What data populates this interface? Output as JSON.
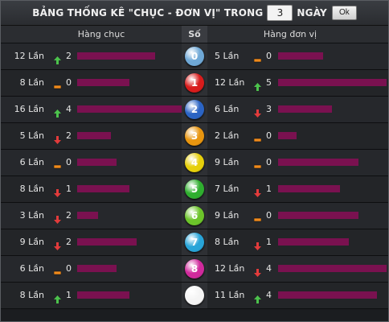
{
  "header": {
    "title": "BẢNG THỐNG KÊ \"CHỤC - ĐƠN VỊ\" TRONG",
    "days_value": "3",
    "days_label": "NGÀY",
    "ok_label": "Ok"
  },
  "columns": {
    "left": "Hàng chục",
    "mid": "Số",
    "right": "Hàng đơn vị"
  },
  "colors": {
    "bar": "#7a1150",
    "up": "#4cc34c",
    "down": "#e23b3b",
    "flat": "#f08a1c"
  },
  "rows": [
    {
      "digit": "0",
      "ball": "#6fa8d6",
      "tens": {
        "count": "12 Lần",
        "trend": "up",
        "delta": "2",
        "level": 0.42
      },
      "units": {
        "count": "5 Lần",
        "trend": "flat",
        "delta": "0",
        "level": 0.24
      }
    },
    {
      "digit": "1",
      "ball": "#d81c1c",
      "tens": {
        "count": "8 Lần",
        "trend": "flat",
        "delta": "0",
        "level": 0.28
      },
      "units": {
        "count": "12 Lần",
        "trend": "up",
        "delta": "5",
        "level": 0.58
      }
    },
    {
      "digit": "2",
      "ball": "#2b64c4",
      "tens": {
        "count": "16 Lần",
        "trend": "up",
        "delta": "4",
        "level": 0.56
      },
      "units": {
        "count": "6 Lần",
        "trend": "down",
        "delta": "3",
        "level": 0.29
      }
    },
    {
      "digit": "3",
      "ball": "#e8950f",
      "tens": {
        "count": "5 Lần",
        "trend": "down",
        "delta": "2",
        "level": 0.18
      },
      "units": {
        "count": "2 Lần",
        "trend": "flat",
        "delta": "0",
        "level": 0.1
      }
    },
    {
      "digit": "4",
      "ball": "#e6cf0b",
      "tens": {
        "count": "6 Lần",
        "trend": "flat",
        "delta": "0",
        "level": 0.21
      },
      "units": {
        "count": "9 Lần",
        "trend": "flat",
        "delta": "0",
        "level": 0.43
      }
    },
    {
      "digit": "5",
      "ball": "#2fae2f",
      "tens": {
        "count": "8 Lần",
        "trend": "down",
        "delta": "1",
        "level": 0.28
      },
      "units": {
        "count": "7 Lần",
        "trend": "down",
        "delta": "1",
        "level": 0.33
      }
    },
    {
      "digit": "6",
      "ball": "#6cc42a",
      "tens": {
        "count": "3 Lần",
        "trend": "down",
        "delta": "2",
        "level": 0.11
      },
      "units": {
        "count": "9 Lần",
        "trend": "flat",
        "delta": "0",
        "level": 0.43
      }
    },
    {
      "digit": "7",
      "ball": "#28a4d8",
      "tens": {
        "count": "9 Lần",
        "trend": "down",
        "delta": "2",
        "level": 0.32
      },
      "units": {
        "count": "8 Lần",
        "trend": "down",
        "delta": "1",
        "level": 0.38
      }
    },
    {
      "digit": "8",
      "ball": "#d02a9c",
      "tens": {
        "count": "6 Lần",
        "trend": "flat",
        "delta": "0",
        "level": 0.21
      },
      "units": {
        "count": "12 Lần",
        "trend": "down",
        "delta": "4",
        "level": 0.58
      }
    },
    {
      "digit": "",
      "ball": "#f4f4f4",
      "tens": {
        "count": "8 Lần",
        "trend": "up",
        "delta": "1",
        "level": 0.28
      },
      "units": {
        "count": "11 Lần",
        "trend": "up",
        "delta": "4",
        "level": 0.53
      }
    }
  ]
}
